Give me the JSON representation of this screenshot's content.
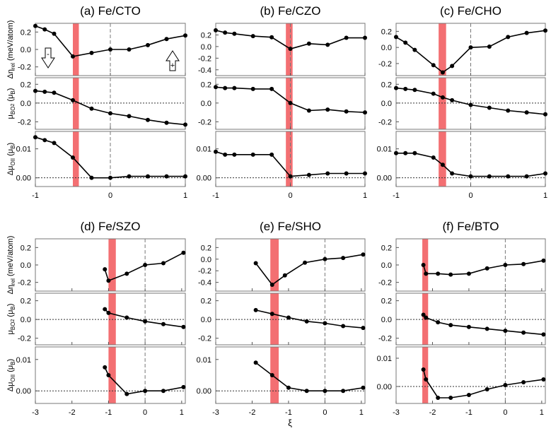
{
  "figure": {
    "xlabel_shared": "ξ",
    "arrow_labels": {
      "left": "-",
      "right": "+"
    }
  },
  "rows": [
    {
      "xticks": [
        -1,
        0,
        1
      ],
      "xlim": [
        -1,
        1
      ],
      "ylabels": [
        "Δη_rel (meV/atom)",
        "μ_BO₂ (μ_B)",
        "Δμ_OII (μ_B)"
      ]
    },
    {
      "xticks": [
        -3,
        -2,
        -1,
        0,
        1
      ],
      "xlim": [
        -3,
        1.1
      ],
      "ylabels": [
        "Δη_rel (meV/atom)",
        "μ_BO₂ (μ_B)",
        "Δμ_OII (μ_B)"
      ]
    }
  ],
  "chart_data": [
    {
      "type": "line",
      "title": "(a) Fe/CTO",
      "row": 0,
      "col": 0,
      "highlight_x": [
        -0.5,
        -0.42
      ],
      "show_arrows": true,
      "panels": [
        {
          "ylim": [
            -0.3,
            0.3
          ],
          "yticks": [
            "0.2",
            "0.0",
            "-0.2"
          ],
          "yticks_v": [
            0.2,
            0.0,
            -0.2
          ],
          "hline": null,
          "x": [
            -1,
            -0.875,
            -0.75,
            -0.5,
            -0.25,
            0,
            0.25,
            0.5,
            0.75,
            1
          ],
          "y": [
            0.27,
            0.23,
            0.18,
            -0.08,
            -0.04,
            0.0,
            0.0,
            0.05,
            0.12,
            0.16
          ]
        },
        {
          "ylim": [
            -0.28,
            0.27
          ],
          "yticks": [
            "0.2",
            "0.0",
            "-0.2"
          ],
          "yticks_v": [
            0.2,
            0.0,
            -0.2
          ],
          "hline": 0,
          "x": [
            -1,
            -0.875,
            -0.75,
            -0.5,
            -0.25,
            0,
            0.25,
            0.5,
            0.75,
            1
          ],
          "y": [
            0.13,
            0.12,
            0.11,
            0.03,
            -0.06,
            -0.11,
            -0.14,
            -0.18,
            -0.21,
            -0.23
          ]
        },
        {
          "ylim": [
            -0.003,
            0.016
          ],
          "yticks": [
            "0.01",
            "0.00"
          ],
          "yticks_v": [
            0.01,
            0.0
          ],
          "hline": 0,
          "x": [
            -1,
            -0.875,
            -0.75,
            -0.5,
            -0.25,
            0,
            0.25,
            0.5,
            0.75,
            1
          ],
          "y": [
            0.014,
            0.013,
            0.012,
            0.007,
            0.0,
            0.0,
            0.0005,
            0.0005,
            0.0005,
            0.0005
          ]
        }
      ]
    },
    {
      "type": "line",
      "title": "(b) Fe/CZO",
      "row": 0,
      "col": 1,
      "highlight_x": [
        -0.06,
        0.03
      ],
      "show_arrows": false,
      "panels": [
        {
          "ylim": [
            -0.5,
            0.4
          ],
          "yticks": [
            "0.2",
            "0.0",
            "-0.2",
            "-0.4"
          ],
          "yticks_v": [
            0.2,
            0.0,
            -0.2,
            -0.4
          ],
          "hline": null,
          "x": [
            -1,
            -0.875,
            -0.75,
            -0.5,
            -0.25,
            0,
            0.25,
            0.5,
            0.75,
            1
          ],
          "y": [
            0.28,
            0.24,
            0.22,
            0.18,
            0.16,
            -0.04,
            0.05,
            0.03,
            0.15,
            0.15
          ]
        },
        {
          "ylim": [
            -0.28,
            0.27
          ],
          "yticks": [
            "0.2",
            "0.0",
            "-0.2"
          ],
          "yticks_v": [
            0.2,
            0.0,
            -0.2
          ],
          "hline": null,
          "x": [
            -1,
            -0.875,
            -0.75,
            -0.5,
            -0.25,
            0,
            0.25,
            0.5,
            0.75,
            1
          ],
          "y": [
            0.17,
            0.16,
            0.16,
            0.15,
            0.15,
            0.0,
            -0.08,
            -0.07,
            -0.09,
            -0.1
          ]
        },
        {
          "ylim": [
            -0.003,
            0.016
          ],
          "yticks": [
            "0.01",
            "0.00"
          ],
          "yticks_v": [
            0.01,
            0.0
          ],
          "hline": 0,
          "x": [
            -1,
            -0.875,
            -0.75,
            -0.5,
            -0.25,
            0,
            0.25,
            0.5,
            0.75,
            1
          ],
          "y": [
            0.009,
            0.008,
            0.008,
            0.008,
            0.008,
            0.0005,
            0.001,
            0.0015,
            0.0015,
            0.0015
          ]
        }
      ]
    },
    {
      "type": "line",
      "title": "(c) Fe/CHO",
      "row": 0,
      "col": 2,
      "highlight_x": [
        -0.43,
        -0.33
      ],
      "show_arrows": false,
      "panels": [
        {
          "ylim": [
            -0.35,
            0.3
          ],
          "yticks": [
            "0.2",
            "0.0",
            "-0.2"
          ],
          "yticks_v": [
            0.2,
            0.0,
            -0.2
          ],
          "hline": null,
          "x": [
            -1,
            -0.875,
            -0.75,
            -0.5,
            -0.375,
            -0.25,
            0,
            0.25,
            0.5,
            0.75,
            1
          ],
          "y": [
            0.13,
            0.06,
            -0.03,
            -0.22,
            -0.31,
            -0.23,
            0.0,
            0.01,
            0.13,
            0.18,
            0.21
          ]
        },
        {
          "ylim": [
            -0.28,
            0.27
          ],
          "yticks": [
            "0.2",
            "0.0",
            "-0.2"
          ],
          "yticks_v": [
            0.2,
            0.0,
            -0.2
          ],
          "hline": 0,
          "x": [
            -1,
            -0.875,
            -0.75,
            -0.5,
            -0.375,
            -0.25,
            0,
            0.25,
            0.5,
            0.75,
            1
          ],
          "y": [
            0.16,
            0.15,
            0.14,
            0.1,
            0.06,
            0.03,
            -0.02,
            -0.05,
            -0.08,
            -0.1,
            -0.12
          ]
        },
        {
          "ylim": [
            -0.003,
            0.016
          ],
          "yticks": [
            "0.01",
            "0.00"
          ],
          "yticks_v": [
            0.01,
            0.0
          ],
          "hline": 0,
          "x": [
            -1,
            -0.875,
            -0.75,
            -0.5,
            -0.375,
            -0.25,
            0,
            0.25,
            0.5,
            0.75,
            1
          ],
          "y": [
            0.0085,
            0.0085,
            0.0085,
            0.007,
            0.0045,
            0.0015,
            0.0005,
            0.0005,
            0.0005,
            0.0005,
            0.0015
          ]
        }
      ]
    },
    {
      "type": "line",
      "title": "(d) Fe/SZO",
      "row": 1,
      "col": 0,
      "highlight_x": [
        -1.0,
        -0.8
      ],
      "show_arrows": false,
      "panels": [
        {
          "ylim": [
            -0.3,
            0.3
          ],
          "yticks": [
            "0.2",
            "0.0",
            "-0.2"
          ],
          "yticks_v": [
            0.2,
            0.0,
            -0.2
          ],
          "hline": null,
          "x": [
            -1.1,
            -1.0,
            -0.5,
            0,
            0.5,
            1.05
          ],
          "y": [
            -0.05,
            -0.18,
            -0.1,
            0.0,
            0.02,
            0.14
          ]
        },
        {
          "ylim": [
            -0.27,
            0.28
          ],
          "yticks": [
            "0.2",
            "0.0",
            "-0.2"
          ],
          "yticks_v": [
            0.2,
            0.0,
            -0.2
          ],
          "hline": 0,
          "x": [
            -1.1,
            -1.0,
            -0.5,
            0,
            0.5,
            1.05
          ],
          "y": [
            0.11,
            0.07,
            0.02,
            -0.02,
            -0.05,
            -0.08
          ]
        },
        {
          "ylim": [
            -0.004,
            0.014
          ],
          "yticks": [
            "0.01",
            "0.00"
          ],
          "yticks_v": [
            0.01,
            0.0
          ],
          "hline": 0,
          "x": [
            -1.1,
            -1.0,
            -0.5,
            0,
            0.5,
            1.05
          ],
          "y": [
            0.0075,
            0.005,
            -0.001,
            0.0,
            0.0,
            0.0012
          ]
        }
      ]
    },
    {
      "type": "line",
      "title": "(e) Fe/SHO",
      "row": 1,
      "col": 1,
      "highlight_x": [
        -1.5,
        -1.27
      ],
      "show_arrows": false,
      "panels": [
        {
          "ylim": [
            -0.55,
            0.35
          ],
          "yticks": [
            "0.2",
            "0.0",
            "-0.2",
            "-0.4"
          ],
          "yticks_v": [
            0.2,
            0.0,
            -0.2,
            -0.4
          ],
          "hline": null,
          "x": [
            -1.9,
            -1.45,
            -1.1,
            -0.55,
            0,
            0.5,
            1.05
          ],
          "y": [
            -0.07,
            -0.44,
            -0.28,
            -0.06,
            0.0,
            0.02,
            0.08
          ]
        },
        {
          "ylim": [
            -0.27,
            0.28
          ],
          "yticks": [
            "0.2",
            "0.0",
            "-0.2"
          ],
          "yticks_v": [
            0.2,
            0.0,
            -0.2
          ],
          "hline": 0,
          "x": [
            -1.9,
            -1.45,
            -1.0,
            -0.5,
            0,
            0.5,
            1.05
          ],
          "y": [
            0.1,
            0.06,
            0.02,
            -0.02,
            -0.04,
            -0.07,
            -0.09
          ]
        },
        {
          "ylim": [
            -0.004,
            0.014
          ],
          "yticks": [
            "0.01",
            "0.00"
          ],
          "yticks_v": [
            0.01,
            0.0
          ],
          "hline": 0,
          "x": [
            -1.9,
            -1.45,
            -1.0,
            -0.5,
            0,
            0.5,
            1.05
          ],
          "y": [
            0.009,
            0.005,
            0.001,
            0.0,
            0.0,
            0.0,
            0.001
          ]
        }
      ]
    },
    {
      "type": "line",
      "title": "(f) Fe/BTO",
      "row": 1,
      "col": 2,
      "highlight_x": [
        -2.28,
        -2.12
      ],
      "show_arrows": false,
      "panels": [
        {
          "ylim": [
            -0.3,
            0.3
          ],
          "yticks": [
            "0.2",
            "0.0",
            "-0.2"
          ],
          "yticks_v": [
            0.2,
            0.0,
            -0.2
          ],
          "hline": null,
          "x": [
            -2.25,
            -2.18,
            -1.85,
            -1.5,
            -1.0,
            -0.5,
            0,
            0.5,
            1.05
          ],
          "y": [
            0.0,
            -0.1,
            -0.1,
            -0.11,
            -0.1,
            -0.04,
            0.0,
            0.01,
            0.05
          ]
        },
        {
          "ylim": [
            -0.27,
            0.28
          ],
          "yticks": [
            "0.2",
            "0.0",
            "-0.2"
          ],
          "yticks_v": [
            0.2,
            0.0,
            -0.2
          ],
          "hline": 0,
          "x": [
            -2.25,
            -2.18,
            -1.85,
            -1.5,
            -1.0,
            -0.5,
            0,
            0.5,
            1.05
          ],
          "y": [
            0.05,
            0.02,
            -0.03,
            -0.06,
            -0.08,
            -0.1,
            -0.12,
            -0.14,
            -0.16
          ]
        },
        {
          "ylim": [
            -0.006,
            0.014
          ],
          "yticks": [
            "0.01",
            "0.00"
          ],
          "yticks_v": [
            0.01,
            0.0
          ],
          "hline": 0,
          "x": [
            -2.25,
            -2.18,
            -1.85,
            -1.5,
            -1.0,
            -0.5,
            0,
            0.5,
            1.05
          ],
          "y": [
            0.006,
            0.0025,
            -0.004,
            -0.004,
            -0.003,
            -0.001,
            0.0005,
            0.0015,
            0.0025
          ]
        }
      ]
    }
  ]
}
